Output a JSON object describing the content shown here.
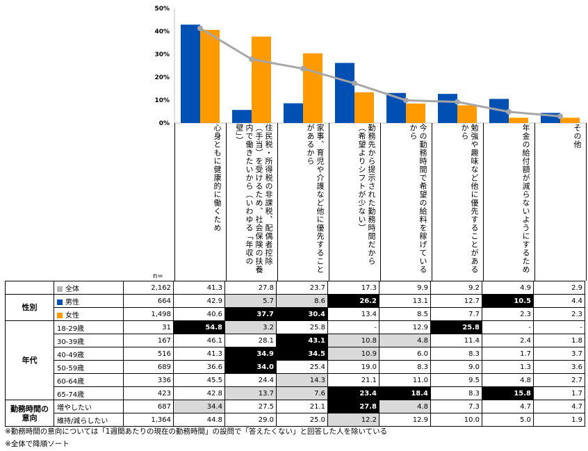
{
  "chart_data": {
    "type": "bar",
    "ylim": [
      0,
      50
    ],
    "ytick_labels": [
      "0%",
      "10%",
      "20%",
      "30%",
      "40%",
      "50%"
    ],
    "grid": false,
    "categories": [
      "心身ともに健康的に働くため",
      "住民税・所得税の非課税、配偶者控除（手当）を受けるため、社会保険の扶養内で働きたいから（いわゆる「年収の壁」）",
      "家事、育児や介護など他に優先することがあるから",
      "勤務先から提示された勤務時間だから（希望よりシフトが少ない）",
      "今の勤務時間で希望の給料を稼げているから",
      "勉強や趣味など他に優先することがあるから",
      "年金の給付額が減らないようにするため",
      "その他"
    ],
    "series": [
      {
        "name": "全体",
        "type": "line",
        "color": "#a6a6a6",
        "values": [
          41.3,
          27.8,
          23.7,
          17.3,
          9.9,
          9.2,
          4.9,
          2.9
        ]
      },
      {
        "name": "男性",
        "type": "bar",
        "color": "#0050b3",
        "values": [
          42.9,
          5.7,
          8.6,
          26.2,
          13.1,
          12.7,
          10.5,
          4.4
        ]
      },
      {
        "name": "女性",
        "type": "bar",
        "color": "#ff9a00",
        "values": [
          40.6,
          37.7,
          30.4,
          13.4,
          8.5,
          7.7,
          2.3,
          2.3
        ]
      }
    ]
  },
  "n_label": "n=",
  "table": {
    "groups": [
      {
        "label": "",
        "rows": [
          {
            "label": "全体",
            "swatch": "#b4b4b4",
            "n": "2,162",
            "values": [
              "41.3",
              "27.8",
              "23.7",
              "17.3",
              "9.9",
              "9.2",
              "4.9",
              "2.9"
            ],
            "hl": [
              "",
              "",
              "",
              "",
              "",
              "",
              "",
              ""
            ]
          }
        ]
      },
      {
        "label": "性別",
        "rows": [
          {
            "label": "男性",
            "swatch": "#0050b3",
            "n": "664",
            "values": [
              "42.9",
              "5.7",
              "8.6",
              "26.2",
              "13.1",
              "12.7",
              "10.5",
              "4.4"
            ],
            "hl": [
              "",
              "g",
              "g",
              "b",
              "",
              "",
              "b",
              ""
            ]
          },
          {
            "label": "女性",
            "swatch": "#ff9a00",
            "n": "1,498",
            "values": [
              "40.6",
              "37.7",
              "30.4",
              "13.4",
              "8.5",
              "7.7",
              "2.3",
              "2.3"
            ],
            "hl": [
              "",
              "b",
              "b",
              "",
              "",
              "",
              "",
              ""
            ]
          }
        ]
      },
      {
        "label": "年代",
        "rows": [
          {
            "label": "18-29歳",
            "swatch": "",
            "n": "31",
            "values": [
              "54.8",
              "3.2",
              "25.8",
              "-",
              "12.9",
              "25.8",
              "-",
              "-"
            ],
            "hl": [
              "b",
              "g",
              "",
              "",
              "",
              "b",
              "",
              ""
            ]
          },
          {
            "label": "30-39歳",
            "swatch": "",
            "n": "167",
            "values": [
              "46.1",
              "28.1",
              "43.1",
              "10.8",
              "4.8",
              "11.4",
              "2.4",
              "1.8"
            ],
            "hl": [
              "",
              "",
              "b",
              "g",
              "g",
              "",
              "",
              ""
            ]
          },
          {
            "label": "40-49歳",
            "swatch": "",
            "n": "516",
            "values": [
              "41.3",
              "34.9",
              "34.5",
              "10.9",
              "6.0",
              "8.3",
              "1.7",
              "3.7"
            ],
            "hl": [
              "",
              "b",
              "b",
              "g",
              "",
              "",
              "",
              ""
            ]
          },
          {
            "label": "50-59歳",
            "swatch": "",
            "n": "689",
            "values": [
              "36.6",
              "34.0",
              "25.4",
              "19.0",
              "8.3",
              "9.0",
              "1.3",
              "3.6"
            ],
            "hl": [
              "",
              "b",
              "",
              "",
              "",
              "",
              "",
              ""
            ]
          },
          {
            "label": "60-64歳",
            "swatch": "",
            "n": "336",
            "values": [
              "45.5",
              "24.4",
              "14.3",
              "21.1",
              "11.0",
              "9.5",
              "4.8",
              "2.7"
            ],
            "hl": [
              "",
              "",
              "g",
              "",
              "",
              "",
              "",
              ""
            ]
          },
          {
            "label": "65-74歳",
            "swatch": "",
            "n": "423",
            "values": [
              "42.8",
              "13.7",
              "7.6",
              "23.4",
              "18.4",
              "8.3",
              "15.8",
              "1.7"
            ],
            "hl": [
              "",
              "g",
              "g",
              "b",
              "b",
              "",
              "b",
              ""
            ]
          }
        ]
      },
      {
        "label": "勤務時間の意向",
        "rows": [
          {
            "label": "増やしたい",
            "swatch": "",
            "n": "687",
            "values": [
              "34.4",
              "27.5",
              "21.1",
              "27.8",
              "4.8",
              "7.3",
              "4.7",
              "4.7"
            ],
            "hl": [
              "g",
              "",
              "",
              "b",
              "g",
              "",
              "",
              ""
            ]
          },
          {
            "label": "維持/減らしたい",
            "swatch": "",
            "n": "1,364",
            "values": [
              "44.8",
              "29.0",
              "25.0",
              "12.2",
              "12.9",
              "10.0",
              "5.0",
              "1.9"
            ],
            "hl": [
              "",
              "",
              "",
              "g",
              "",
              "",
              "",
              ""
            ]
          }
        ]
      }
    ]
  },
  "notes": [
    "※勤務時間の意向については「1週間あたりの現在の勤務時間」の設問で「答えたくない」と回答した人を除いている",
    "※全体で降順ソート"
  ]
}
